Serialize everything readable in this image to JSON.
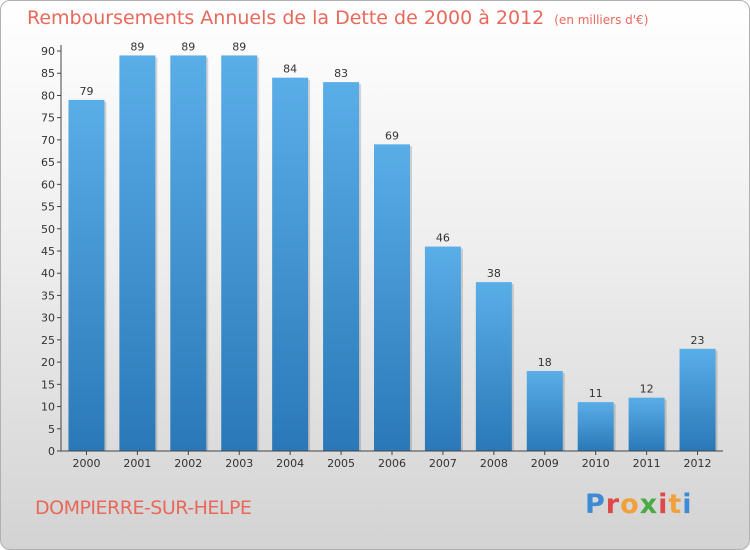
{
  "header": {
    "title": "Remboursements Annuels de la Dette de 2000 à 2012",
    "subtitle": "(en milliers d'€)"
  },
  "footer": {
    "city": "DOMPIERRE-SUR-HELPE",
    "brand": "Proxiti"
  },
  "colors": {
    "title": "#e8685a",
    "bar_light": "#5aaee8",
    "bar_dark": "#2a78b8",
    "brand_letters": [
      "#3d8bd4",
      "#e04848",
      "#f2a03a",
      "#4aaa44",
      "#e04848",
      "#f2a03a",
      "#3d8bd4"
    ]
  },
  "chart_data": {
    "type": "bar",
    "title": "Remboursements Annuels de la Dette de 2000 à 2012",
    "subtitle": "(en milliers d'€)",
    "xlabel": "",
    "ylabel": "",
    "categories": [
      "2000",
      "2001",
      "2002",
      "2003",
      "2004",
      "2005",
      "2006",
      "2007",
      "2008",
      "2009",
      "2010",
      "2011",
      "2012"
    ],
    "values": [
      79,
      89,
      89,
      89,
      84,
      83,
      69,
      46,
      38,
      18,
      11,
      12,
      23
    ],
    "value_labels": [
      "79",
      "89",
      "89",
      "89",
      "84",
      "83",
      "69",
      "46",
      "38",
      "18",
      "11",
      "12",
      "23"
    ],
    "yticks": [
      "0",
      "5",
      "10",
      "15",
      "20",
      "25",
      "30",
      "35",
      "40",
      "45",
      "50",
      "55",
      "60",
      "65",
      "70",
      "75",
      "80",
      "85",
      "90"
    ],
    "ylim": [
      0,
      90
    ],
    "grid": false
  }
}
